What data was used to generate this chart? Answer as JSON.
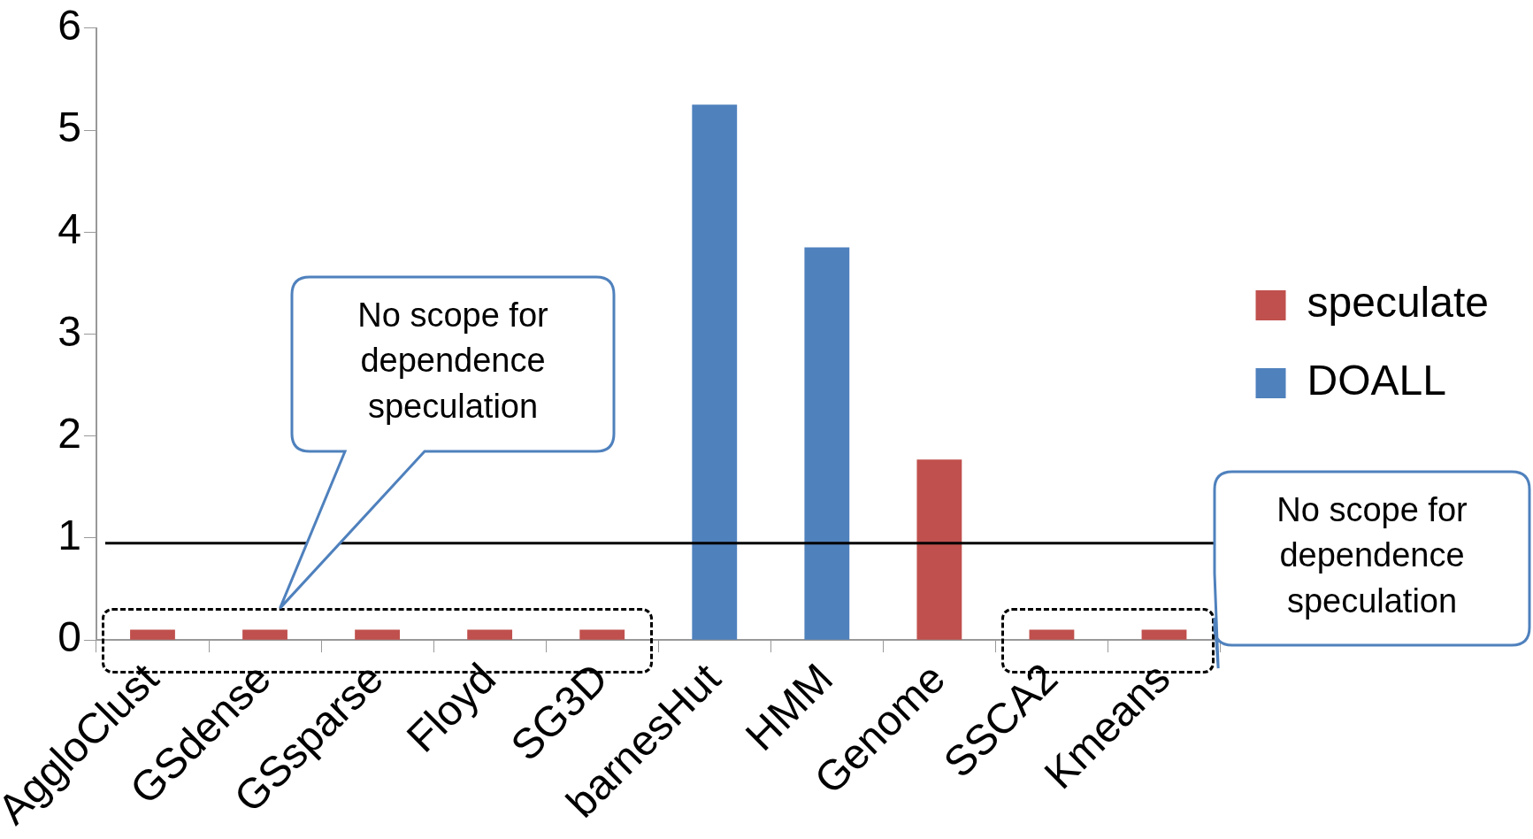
{
  "chart_data": {
    "type": "bar",
    "stacked": true,
    "categories": [
      "AggloClust",
      "GSdense",
      "GSsparse",
      "Floyd",
      "SG3D",
      "barnesHut",
      "HMM",
      "Genome",
      "SSCA2",
      "Kmeans"
    ],
    "series": [
      {
        "name": "speculate",
        "color": "#c0504d",
        "values": [
          0.1,
          0.1,
          0.1,
          0.1,
          0.1,
          null,
          null,
          1.77,
          0.1,
          0.1
        ]
      },
      {
        "name": "DOALL",
        "color": "#4f81bd",
        "values": [
          null,
          null,
          null,
          null,
          null,
          5.25,
          3.85,
          null,
          null,
          null
        ]
      }
    ],
    "ylim": [
      0,
      6
    ],
    "yticks": [
      0,
      1,
      2,
      3,
      4,
      5,
      6
    ],
    "grid": false,
    "legend": "right",
    "ref_lines": [
      {
        "axis": "y",
        "value": 0.95,
        "color": "#000000"
      }
    ],
    "annotations": [
      "No scope for dependence speculation",
      "No scope for dependence speculation"
    ]
  }
}
